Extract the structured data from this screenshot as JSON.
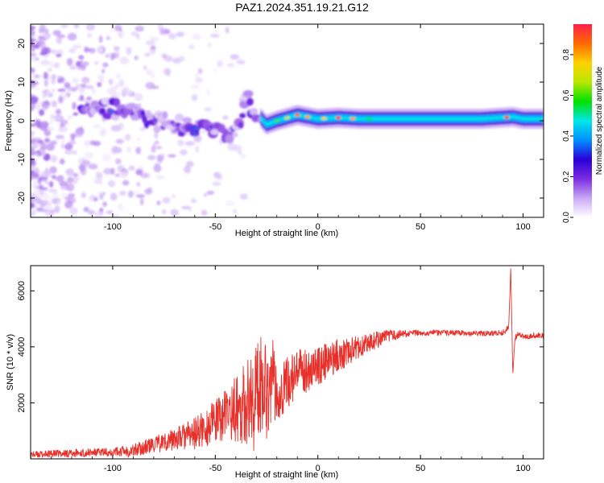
{
  "figure": {
    "title": "PAZ1.2024.351.19.21.G12"
  },
  "chart_data": [
    {
      "type": "heatmap",
      "title": "PAZ1.2024.351.19.21.G12",
      "xlabel": "Height of straight line (km)",
      "ylabel": "Frequency (Hz)",
      "xlim": [
        -140,
        110
      ],
      "ylim": [
        -25,
        25
      ],
      "xticks": [
        -100,
        -50,
        0,
        50,
        100
      ],
      "yticks": [
        -20,
        -10,
        0,
        10,
        20
      ],
      "colorbar": {
        "label": "Normalized spectral amplitude",
        "range": [
          0,
          0.95
        ],
        "ticks": [
          0.0,
          0.2,
          0.4,
          0.6,
          0.8
        ],
        "colormap": [
          "#ffffff",
          "#c9a8f5",
          "#7a2be0",
          "#2a00d8",
          "#0090ff",
          "#00e8e8",
          "#00e000",
          "#b8e800",
          "#ffd000",
          "#ff6a00",
          "#ff1f4a"
        ]
      },
      "dominant_frequency_track": {
        "x": [
          -110,
          -100,
          -90,
          -80,
          -70,
          -60,
          -50,
          -40,
          -35,
          -30,
          -25,
          -20,
          -10,
          0,
          10,
          20,
          40,
          60,
          80,
          95,
          100,
          110
        ],
        "y": [
          4,
          3,
          2,
          0,
          -1,
          -2,
          -3,
          -4,
          6,
          2,
          -1,
          0,
          1.5,
          0.5,
          0.8,
          0.5,
          0.5,
          0.5,
          0.5,
          1,
          0.5,
          0.5
        ]
      }
    },
    {
      "type": "line",
      "xlabel": "Height of straight line (km)",
      "ylabel": "SNR (10 * v/v)",
      "xlim": [
        -140,
        110
      ],
      "ylim": [
        0,
        6900
      ],
      "xticks": [
        -100,
        -50,
        0,
        50,
        100
      ],
      "yticks": [
        2000,
        4000,
        6000
      ],
      "series": [
        {
          "color": "#e8302a",
          "x": [
            -140,
            -120,
            -100,
            -90,
            -80,
            -70,
            -60,
            -50,
            -45,
            -40,
            -35,
            -30,
            -27,
            -25,
            -22,
            -20,
            -15,
            -10,
            -5,
            0,
            10,
            20,
            30,
            40,
            50,
            60,
            70,
            80,
            90,
            93,
            94,
            95,
            96,
            98,
            100,
            105,
            110
          ],
          "y": [
            150,
            200,
            250,
            300,
            500,
            700,
            900,
            1300,
            1600,
            1800,
            2000,
            2200,
            3000,
            2500,
            2800,
            2300,
            2700,
            3000,
            3200,
            3300,
            3700,
            4000,
            4300,
            4450,
            4500,
            4500,
            4500,
            4480,
            4500,
            4700,
            6800,
            3000,
            4300,
            4500,
            4350,
            4400,
            4400
          ],
          "noise_amplitude": [
            120,
            150,
            150,
            250,
            300,
            400,
            600,
            800,
            900,
            1200,
            1500,
            2000,
            2000,
            1800,
            1500,
            1000,
            1000,
            900,
            800,
            700,
            600,
            400,
            300,
            150,
            100,
            100,
            100,
            100,
            100,
            100,
            0,
            0,
            120,
            100,
            100,
            100,
            100
          ]
        }
      ]
    }
  ]
}
